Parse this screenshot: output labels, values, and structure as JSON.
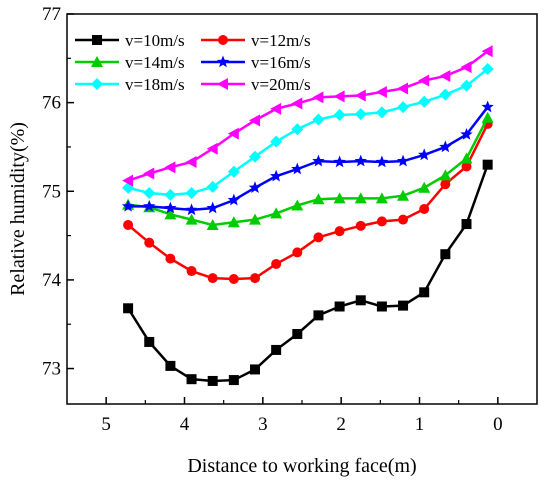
{
  "chart_data": {
    "type": "line",
    "xlabel": "Distance to working face(m)",
    "ylabel": "Relative humidity(%)",
    "xlim": [
      5.5,
      -0.5
    ],
    "ylim": [
      72.6,
      77.0
    ],
    "x_reversed": true,
    "x_ticks": [
      5,
      4,
      3,
      2,
      1,
      0
    ],
    "y_ticks": [
      73,
      74,
      75,
      76,
      77
    ],
    "grid": false,
    "legend_position": "top-left",
    "x": [
      4.72,
      4.45,
      4.18,
      3.91,
      3.64,
      3.37,
      3.1,
      2.83,
      2.56,
      2.29,
      2.02,
      1.75,
      1.48,
      1.21,
      0.94,
      0.67,
      0.4,
      0.13
    ],
    "series": [
      {
        "name": "v=10m/s",
        "color": "#000000",
        "marker": "square",
        "values": [
          73.68,
          73.3,
          73.03,
          72.88,
          72.86,
          72.87,
          72.99,
          73.21,
          73.39,
          73.6,
          73.7,
          73.77,
          73.7,
          73.71,
          73.86,
          74.29,
          74.63,
          75.3
        ]
      },
      {
        "name": "v=12m/s",
        "color": "#ff0000",
        "marker": "circle",
        "values": [
          74.62,
          74.42,
          74.24,
          74.1,
          74.02,
          74.01,
          74.02,
          74.18,
          74.31,
          74.48,
          74.55,
          74.61,
          74.66,
          74.68,
          74.8,
          75.08,
          75.28,
          75.76
        ]
      },
      {
        "name": "v=14m/s",
        "color": "#00cc00",
        "marker": "triangle-up",
        "values": [
          74.85,
          74.82,
          74.74,
          74.68,
          74.62,
          74.65,
          74.68,
          74.75,
          74.84,
          74.91,
          74.92,
          74.92,
          74.92,
          74.95,
          75.04,
          75.18,
          75.37,
          75.83
        ]
      },
      {
        "name": "v=16m/s",
        "color": "#0000ff",
        "marker": "star",
        "values": [
          74.83,
          74.83,
          74.81,
          74.79,
          74.81,
          74.9,
          75.04,
          75.17,
          75.25,
          75.34,
          75.33,
          75.34,
          75.33,
          75.34,
          75.41,
          75.5,
          75.64,
          75.95
        ]
      },
      {
        "name": "v=18m/s",
        "color": "#00ffff",
        "marker": "diamond",
        "values": [
          75.04,
          74.98,
          74.96,
          74.98,
          75.05,
          75.22,
          75.39,
          75.56,
          75.7,
          75.81,
          75.86,
          75.87,
          75.89,
          75.95,
          76.01,
          76.09,
          76.19,
          76.38
        ]
      },
      {
        "name": "v=20m/s",
        "color": "#ff00ff",
        "marker": "triangle-left",
        "values": [
          75.12,
          75.2,
          75.27,
          75.33,
          75.48,
          75.65,
          75.8,
          75.93,
          75.99,
          76.06,
          76.07,
          76.08,
          76.12,
          76.16,
          76.25,
          76.3,
          76.4,
          76.58
        ]
      }
    ]
  }
}
